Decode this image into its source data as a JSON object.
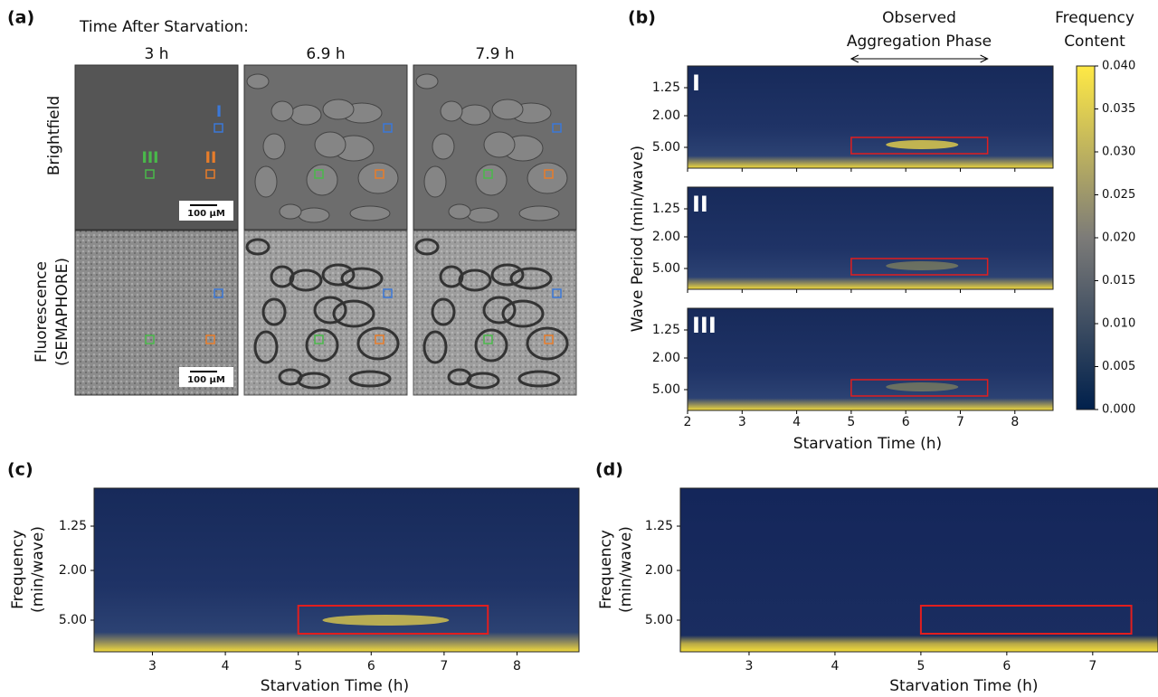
{
  "panel_a": {
    "label": "(a)",
    "title": "Time After Starvation:",
    "columns": [
      "3 h",
      "6.9 h",
      "7.9 h"
    ],
    "rows": [
      "Brightfield",
      "Fluorescence",
      "(SEMAPHORE)"
    ],
    "regions": [
      "I",
      "II",
      "III"
    ],
    "scale_bar": "100 μM"
  },
  "panel_b": {
    "label": "(b)",
    "annotation": [
      "Observed",
      "Aggregation Phase"
    ],
    "colorbar_title": [
      "Frequency",
      "Content"
    ],
    "ylabel": "Wave Period (min/wave)",
    "xlabel": "Starvation Time (h)",
    "xlim": [
      2,
      8.7
    ],
    "xticks": [
      2,
      3,
      4,
      5,
      6,
      7,
      8
    ],
    "ytick_labels": [
      "1.25",
      "2.00",
      "5.00"
    ],
    "subplots": [
      "I",
      "II",
      "III"
    ],
    "highlight": [
      5,
      7.5
    ],
    "clim": [
      0,
      0.04
    ],
    "cticks": [
      {
        "value": 0,
        "label": "0.000"
      },
      {
        "value": 0.005,
        "label": "0.005"
      },
      {
        "value": 0.01,
        "label": "0.010"
      },
      {
        "value": 0.015,
        "label": "0.015"
      },
      {
        "value": 0.02,
        "label": "0.020"
      },
      {
        "value": 0.025,
        "label": "0.025"
      },
      {
        "value": 0.03,
        "label": "0.030"
      },
      {
        "value": 0.035,
        "label": "0.035"
      },
      {
        "value": 0.04,
        "label": "0.040"
      }
    ]
  },
  "panel_c": {
    "label": "(c)",
    "ylabel": [
      "Frequency",
      "(min/wave)"
    ],
    "xlabel": "Starvation Time (h)",
    "xlim": [
      2.2,
      8.85
    ],
    "xticks": [
      3,
      4,
      5,
      6,
      7,
      8
    ],
    "ytick_labels": [
      "1.25",
      "2.00",
      "5.00"
    ],
    "highlight": [
      5,
      7.6
    ]
  },
  "panel_d": {
    "label": "(d)",
    "ylabel": [
      "Frequency",
      "(min/wave)"
    ],
    "xlabel": "Starvation Time (h)",
    "xlim": [
      2.2,
      7.76
    ],
    "xticks": [
      3,
      4,
      5,
      6,
      7
    ],
    "ytick_labels": [
      "1.25",
      "2.00",
      "5.00"
    ],
    "highlight": [
      5,
      7.45
    ]
  }
}
